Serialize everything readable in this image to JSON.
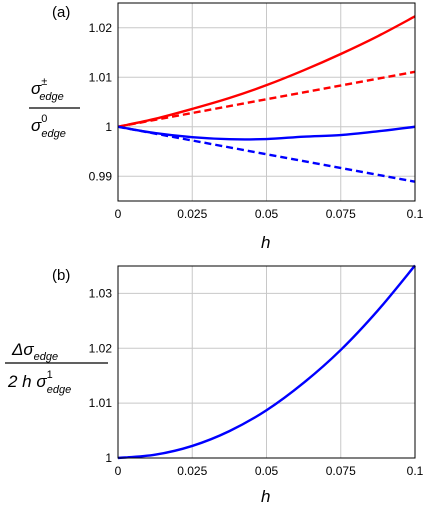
{
  "chart_data": [
    {
      "type": "line",
      "panel_label": "(a)",
      "xlabel": "h",
      "ylabel": {
        "numerator": {
          "symbol": "σ",
          "superscript": "±",
          "subscript": "edge"
        },
        "denominator": {
          "symbol": "σ",
          "superscript": "0",
          "subscript": "edge"
        }
      },
      "xlim": [
        0,
        0.1
      ],
      "ylim": [
        0.985,
        1.025
      ],
      "xticks": [
        0,
        0.025,
        0.05,
        0.075,
        0.1
      ],
      "xtick_labels": [
        "0",
        "0.025",
        "0.05",
        "0.075",
        "0.1"
      ],
      "yticks": [
        0.99,
        1.0,
        1.01,
        1.02
      ],
      "ytick_labels": [
        "0.99",
        "1",
        "1.01",
        "1.02"
      ],
      "grid": true,
      "series": [
        {
          "color": "#ff0000",
          "style": "solid",
          "x": [
            0,
            0.0125,
            0.025,
            0.0375,
            0.05,
            0.0625,
            0.075,
            0.0875,
            0.1
          ],
          "y": [
            1.0,
            1.0016,
            1.0036,
            1.0058,
            1.0084,
            1.0114,
            1.0147,
            1.0183,
            1.0223
          ]
        },
        {
          "color": "#ff0000",
          "style": "dashed",
          "x": [
            0,
            0.1
          ],
          "y": [
            1.0,
            1.0111
          ]
        },
        {
          "color": "#0000ff",
          "style": "solid",
          "x": [
            0,
            0.0125,
            0.025,
            0.0375,
            0.05,
            0.0625,
            0.075,
            0.0875,
            0.1
          ],
          "y": [
            1.0,
            0.99872,
            0.99788,
            0.99748,
            0.99752,
            0.998,
            0.99832,
            0.99908,
            1.0
          ]
        },
        {
          "color": "#0000ff",
          "style": "dashed",
          "x": [
            0,
            0.1
          ],
          "y": [
            1.0,
            0.9889
          ]
        }
      ]
    },
    {
      "type": "line",
      "panel_label": "(b)",
      "xlabel": "h",
      "ylabel": {
        "numerator": {
          "symbol": "Δσ",
          "subscript": "edge"
        },
        "denominator": {
          "prefix": "2 h ",
          "symbol": "σ",
          "superscript": "1",
          "subscript": "edge"
        }
      },
      "xlim": [
        0,
        0.1
      ],
      "ylim": [
        1.0,
        1.035
      ],
      "xticks": [
        0,
        0.025,
        0.05,
        0.075,
        0.1
      ],
      "xtick_labels": [
        "0",
        "0.025",
        "0.05",
        "0.075",
        "0.1"
      ],
      "yticks": [
        1.0,
        1.01,
        1.02,
        1.03
      ],
      "ytick_labels": [
        "1",
        "1.01",
        "1.02",
        "1.03"
      ],
      "grid": true,
      "series": [
        {
          "color": "#0000ff",
          "style": "solid",
          "x": [
            0,
            0.0125,
            0.025,
            0.0375,
            0.05,
            0.0625,
            0.075,
            0.0875,
            0.1
          ],
          "y": [
            1.0,
            1.0006,
            1.0022,
            1.0049,
            1.0087,
            1.0137,
            1.0197,
            1.0269,
            1.0351
          ]
        }
      ]
    }
  ]
}
